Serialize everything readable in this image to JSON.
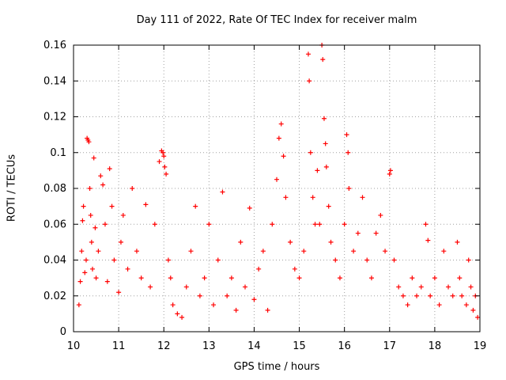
{
  "chart_data": {
    "type": "scatter",
    "title": "Day 111 of 2022, Rate Of TEC Index for receiver malm",
    "xlabel": "GPS time / hours",
    "ylabel": "ROTI / TECUs",
    "xlim": [
      10,
      19
    ],
    "ylim": [
      0,
      0.16
    ],
    "xticks": [
      10,
      11,
      12,
      13,
      14,
      15,
      16,
      17,
      18,
      19
    ],
    "yticks": [
      0,
      0.02,
      0.04,
      0.06,
      0.08,
      0.1,
      0.12,
      0.14,
      0.16
    ],
    "grid": true,
    "marker": "+",
    "color": "#ff0000",
    "series": [
      {
        "name": "ROTI",
        "points": [
          [
            10.12,
            0.015
          ],
          [
            10.15,
            0.028
          ],
          [
            10.18,
            0.045
          ],
          [
            10.2,
            0.062
          ],
          [
            10.22,
            0.07
          ],
          [
            10.25,
            0.033
          ],
          [
            10.28,
            0.04
          ],
          [
            10.3,
            0.108
          ],
          [
            10.32,
            0.107
          ],
          [
            10.34,
            0.106
          ],
          [
            10.36,
            0.08
          ],
          [
            10.38,
            0.065
          ],
          [
            10.4,
            0.05
          ],
          [
            10.42,
            0.035
          ],
          [
            10.45,
            0.097
          ],
          [
            10.48,
            0.058
          ],
          [
            10.5,
            0.03
          ],
          [
            10.55,
            0.045
          ],
          [
            10.6,
            0.087
          ],
          [
            10.65,
            0.082
          ],
          [
            10.7,
            0.06
          ],
          [
            10.75,
            0.028
          ],
          [
            10.8,
            0.091
          ],
          [
            10.85,
            0.07
          ],
          [
            10.9,
            0.04
          ],
          [
            11.0,
            0.022
          ],
          [
            11.05,
            0.05
          ],
          [
            11.1,
            0.065
          ],
          [
            11.2,
            0.035
          ],
          [
            11.3,
            0.08
          ],
          [
            11.4,
            0.045
          ],
          [
            11.5,
            0.03
          ],
          [
            11.6,
            0.071
          ],
          [
            11.7,
            0.025
          ],
          [
            11.8,
            0.06
          ],
          [
            11.9,
            0.095
          ],
          [
            11.95,
            0.101
          ],
          [
            11.98,
            0.1
          ],
          [
            12.0,
            0.098
          ],
          [
            12.02,
            0.092
          ],
          [
            12.05,
            0.088
          ],
          [
            12.1,
            0.04
          ],
          [
            12.15,
            0.03
          ],
          [
            12.2,
            0.015
          ],
          [
            12.3,
            0.01
          ],
          [
            12.4,
            0.008
          ],
          [
            12.5,
            0.025
          ],
          [
            12.6,
            0.045
          ],
          [
            12.7,
            0.07
          ],
          [
            12.8,
            0.02
          ],
          [
            12.9,
            0.03
          ],
          [
            13.0,
            0.06
          ],
          [
            13.1,
            0.015
          ],
          [
            13.2,
            0.04
          ],
          [
            13.3,
            0.078
          ],
          [
            13.4,
            0.02
          ],
          [
            13.5,
            0.03
          ],
          [
            13.6,
            0.012
          ],
          [
            13.7,
            0.05
          ],
          [
            13.8,
            0.025
          ],
          [
            13.9,
            0.069
          ],
          [
            14.0,
            0.018
          ],
          [
            14.1,
            0.035
          ],
          [
            14.2,
            0.045
          ],
          [
            14.3,
            0.012
          ],
          [
            14.4,
            0.06
          ],
          [
            14.5,
            0.085
          ],
          [
            14.55,
            0.108
          ],
          [
            14.6,
            0.116
          ],
          [
            14.65,
            0.098
          ],
          [
            14.7,
            0.075
          ],
          [
            14.8,
            0.05
          ],
          [
            14.9,
            0.035
          ],
          [
            15.0,
            0.03
          ],
          [
            15.1,
            0.045
          ],
          [
            15.2,
            0.155
          ],
          [
            15.22,
            0.14
          ],
          [
            15.25,
            0.1
          ],
          [
            15.3,
            0.075
          ],
          [
            15.35,
            0.06
          ],
          [
            15.4,
            0.09
          ],
          [
            15.45,
            0.06
          ],
          [
            15.5,
            0.16
          ],
          [
            15.52,
            0.152
          ],
          [
            15.55,
            0.119
          ],
          [
            15.58,
            0.105
          ],
          [
            15.6,
            0.092
          ],
          [
            15.65,
            0.07
          ],
          [
            15.7,
            0.05
          ],
          [
            15.8,
            0.04
          ],
          [
            15.9,
            0.03
          ],
          [
            16.0,
            0.06
          ],
          [
            16.05,
            0.11
          ],
          [
            16.08,
            0.1
          ],
          [
            16.1,
            0.08
          ],
          [
            16.2,
            0.045
          ],
          [
            16.3,
            0.055
          ],
          [
            16.4,
            0.075
          ],
          [
            16.5,
            0.04
          ],
          [
            16.6,
            0.03
          ],
          [
            16.7,
            0.055
          ],
          [
            16.8,
            0.065
          ],
          [
            16.9,
            0.045
          ],
          [
            17.0,
            0.088
          ],
          [
            17.02,
            0.09
          ],
          [
            17.1,
            0.04
          ],
          [
            17.2,
            0.025
          ],
          [
            17.3,
            0.02
          ],
          [
            17.4,
            0.015
          ],
          [
            17.5,
            0.03
          ],
          [
            17.6,
            0.02
          ],
          [
            17.7,
            0.025
          ],
          [
            17.8,
            0.06
          ],
          [
            17.85,
            0.051
          ],
          [
            17.9,
            0.02
          ],
          [
            18.0,
            0.03
          ],
          [
            18.1,
            0.015
          ],
          [
            18.2,
            0.045
          ],
          [
            18.3,
            0.025
          ],
          [
            18.4,
            0.02
          ],
          [
            18.5,
            0.05
          ],
          [
            18.55,
            0.03
          ],
          [
            18.6,
            0.02
          ],
          [
            18.7,
            0.015
          ],
          [
            18.75,
            0.04
          ],
          [
            18.8,
            0.025
          ],
          [
            18.85,
            0.012
          ],
          [
            18.9,
            0.02
          ],
          [
            18.95,
            0.008
          ]
        ]
      }
    ]
  }
}
